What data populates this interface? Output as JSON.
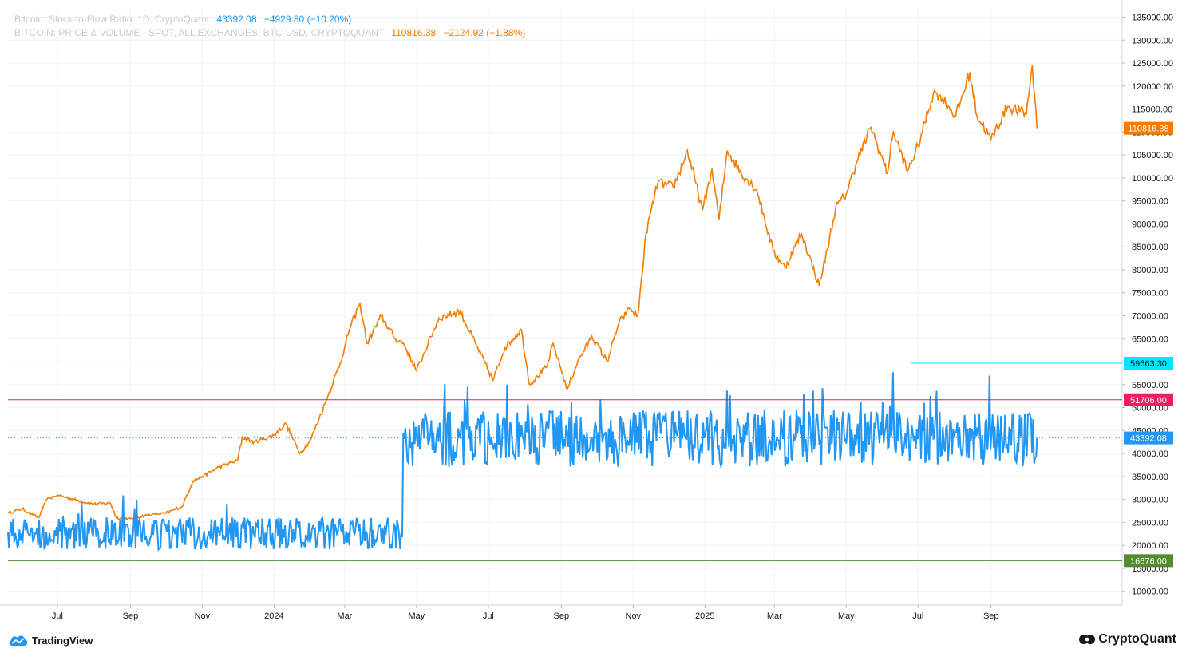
{
  "legend": {
    "s2f": {
      "name": "Bitcoin: Stock-to-Flow Ratio, 1D, CryptoQuant",
      "value": "43392.08",
      "change": "−4929.80 (−10.20%)",
      "color": "#2196f3"
    },
    "price": {
      "name": "BITCOIN: PRICE & VOLUME - SPOT, ALL EXCHANGES, BTC-USD, CRYPTOQUANT",
      "value": "110816.38",
      "change": "−2124.92 (−1.88%)",
      "color": "#f57c00"
    }
  },
  "footer": {
    "tradingview": "TradingView",
    "cryptoquant": "CryptoQuant"
  },
  "chart_data": {
    "type": "line",
    "x_ticks": [
      "Jul",
      "Sep",
      "Nov",
      "2024",
      "Mar",
      "May",
      "Jul",
      "Sep",
      "Nov",
      "2025",
      "Mar",
      "May",
      "Jul",
      "Sep"
    ],
    "y_ticks": [
      135000,
      130000,
      125000,
      120000,
      115000,
      110000,
      105000,
      100000,
      95000,
      90000,
      85000,
      80000,
      75000,
      70000,
      65000,
      60000,
      55000,
      50000,
      45000,
      40000,
      35000,
      30000,
      25000,
      20000,
      15000,
      10000
    ],
    "ylim": [
      7000,
      137000
    ],
    "series": [
      {
        "name": "BITCOIN: PRICE & VOLUME - SPOT, ALL EXCHANGES, BTC-USD, CRYPTOQUANT",
        "color": "#f57c00",
        "x": [
          "2023-05-20",
          "2023-06-01",
          "2023-06-15",
          "2023-06-22",
          "2023-07-01",
          "2023-07-15",
          "2023-08-01",
          "2023-08-15",
          "2023-08-20",
          "2023-09-01",
          "2023-09-15",
          "2023-10-01",
          "2023-10-15",
          "2023-10-24",
          "2023-11-01",
          "2023-11-15",
          "2023-12-01",
          "2023-12-05",
          "2023-12-15",
          "2024-01-01",
          "2024-01-11",
          "2024-01-23",
          "2024-02-01",
          "2024-02-15",
          "2024-02-28",
          "2024-03-05",
          "2024-03-14",
          "2024-03-20",
          "2024-04-01",
          "2024-04-13",
          "2024-04-20",
          "2024-05-01",
          "2024-05-20",
          "2024-06-07",
          "2024-06-20",
          "2024-07-05",
          "2024-07-15",
          "2024-07-29",
          "2024-08-05",
          "2024-08-20",
          "2024-08-25",
          "2024-09-06",
          "2024-09-15",
          "2024-09-27",
          "2024-10-10",
          "2024-10-20",
          "2024-10-29",
          "2024-11-05",
          "2024-11-12",
          "2024-11-22",
          "2024-12-05",
          "2024-12-10",
          "2024-12-17",
          "2024-12-30",
          "2025-01-07",
          "2025-01-13",
          "2025-01-20",
          "2025-02-01",
          "2025-02-14",
          "2025-02-28",
          "2025-03-10",
          "2025-03-24",
          "2025-04-08",
          "2025-04-15",
          "2025-04-22",
          "2025-05-01",
          "2025-05-10",
          "2025-05-22",
          "2025-06-05",
          "2025-06-10",
          "2025-06-22",
          "2025-07-01",
          "2025-07-14",
          "2025-07-20",
          "2025-08-02",
          "2025-08-14",
          "2025-08-20",
          "2025-09-01",
          "2025-09-15",
          "2025-10-01",
          "2025-10-06",
          "2025-10-10"
        ],
        "y": [
          27000,
          28000,
          26000,
          30000,
          31000,
          30000,
          29000,
          29200,
          26000,
          25800,
          26600,
          27000,
          28500,
          34000,
          35000,
          37000,
          38500,
          43500,
          42500,
          44000,
          46500,
          40000,
          43000,
          52000,
          61000,
          67000,
          72800,
          64000,
          70000,
          65000,
          64000,
          58000,
          69500,
          71000,
          64000,
          56000,
          63000,
          67000,
          55000,
          59000,
          64000,
          54000,
          60000,
          65500,
          60000,
          68500,
          71500,
          70000,
          88000,
          99000,
          98000,
          101000,
          106000,
          93000,
          102000,
          91000,
          106000,
          101000,
          97500,
          84000,
          80500,
          88000,
          76500,
          84500,
          93500,
          96500,
          103500,
          111000,
          101000,
          110000,
          101500,
          107000,
          118500,
          118000,
          113500,
          123000,
          113500,
          108500,
          115500,
          114000,
          124500,
          110816.38
        ]
      },
      {
        "name": "Bitcoin: Stock-to-Flow Ratio, 1D, CryptoQuant",
        "color": "#2196f3",
        "x": [
          "2023-05-20",
          "2024-04-15",
          "2024-04-19",
          "2024-04-20",
          "2025-10-10"
        ],
        "y": [
          22000,
          22000,
          20000,
          44000,
          43392.08
        ],
        "band_before_halving": [
          17000,
          31000
        ],
        "band_after_halving": [
          34000,
          59663.3
        ]
      }
    ],
    "lines": [
      {
        "value": 59663.3,
        "label": "59663.30",
        "color": "#00e5ff",
        "from": "2025-06-25"
      },
      {
        "value": 51706.0,
        "label": "51706.00",
        "color": "#e91e63"
      },
      {
        "value": 16676.0,
        "label": "16676.00",
        "color": "#558b2f"
      },
      {
        "value": 43392.08,
        "label": "43392.08",
        "color": "#2196f3",
        "style": "dotted"
      },
      {
        "value": 110816.38,
        "label": "110816.38",
        "color": "#f57c00"
      }
    ]
  }
}
